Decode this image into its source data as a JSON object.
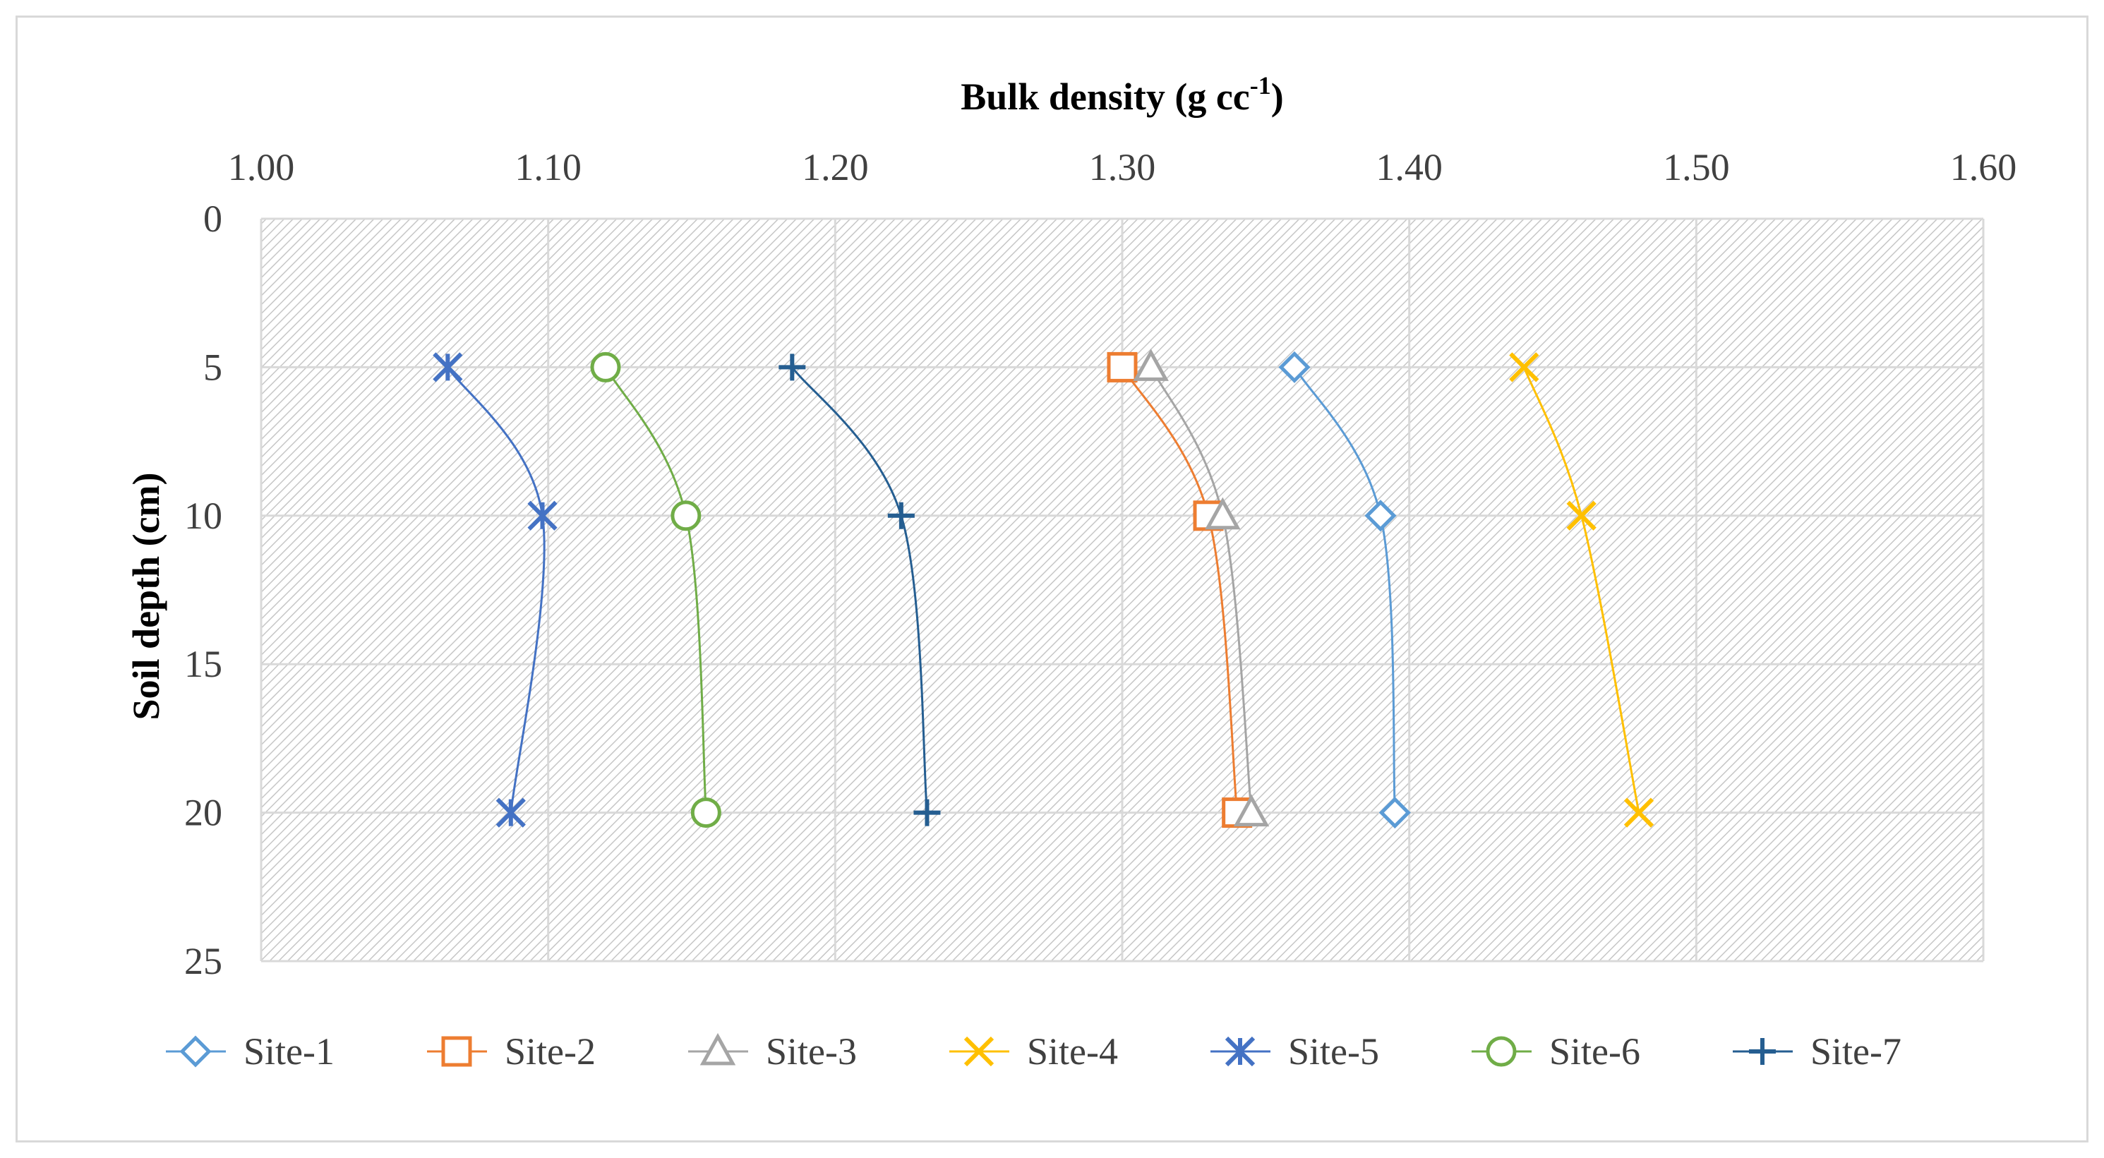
{
  "chart_data": {
    "type": "line",
    "title": "",
    "xlabel": "Bulk density (g cc",
    "xlabel_superscript": "-1",
    "xlabel_close": ")",
    "ylabel": "Soil depth (cm)",
    "xlim": [
      1.0,
      1.6
    ],
    "ylim": [
      0,
      25
    ],
    "x_axis_position": "top",
    "y_axis_inverted": true,
    "x_ticks": [
      "1.00",
      "1.10",
      "1.20",
      "1.30",
      "1.40",
      "1.50",
      "1.60"
    ],
    "y_ticks": [
      "0",
      "5",
      "10",
      "15",
      "20",
      "25"
    ],
    "grid": true,
    "legend_position": "bottom",
    "depths": [
      5,
      10,
      20
    ],
    "series": [
      {
        "name": "Site-1",
        "marker": "diamond",
        "color": "#5b9bd5",
        "values": [
          1.36,
          1.39,
          1.395
        ]
      },
      {
        "name": "Site-2",
        "marker": "square",
        "color": "#ed7d31",
        "values": [
          1.3,
          1.33,
          1.34
        ]
      },
      {
        "name": "Site-3",
        "marker": "triangle",
        "color": "#a5a5a5",
        "values": [
          1.31,
          1.335,
          1.345
        ]
      },
      {
        "name": "Site-4",
        "marker": "x",
        "color": "#ffc000",
        "values": [
          1.44,
          1.46,
          1.48
        ]
      },
      {
        "name": "Site-5",
        "marker": "star",
        "color": "#4472c4",
        "values": [
          1.065,
          1.098,
          1.087
        ]
      },
      {
        "name": "Site-6",
        "marker": "circle",
        "color": "#70ad47",
        "values": [
          1.12,
          1.148,
          1.155
        ]
      },
      {
        "name": "Site-7",
        "marker": "plus",
        "color": "#255e91",
        "values": [
          1.185,
          1.223,
          1.232
        ]
      }
    ]
  }
}
